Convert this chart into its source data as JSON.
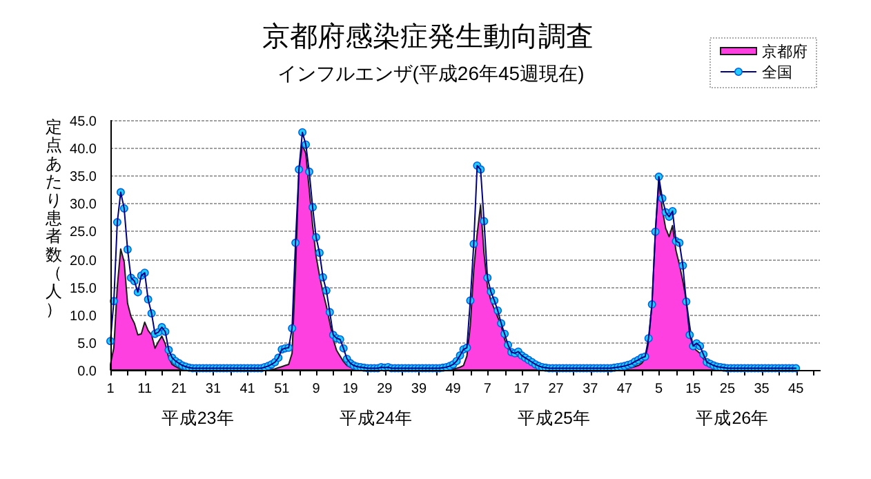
{
  "chart_data": {
    "type": "line",
    "title": "京都府感染症発生動向調査",
    "subtitle": "インフルエンザ(平成26年45週現在)",
    "ylabel": "定点あたり患者数（人）",
    "categories": [
      "1",
      null,
      null,
      null,
      null,
      null,
      null,
      null,
      null,
      null,
      "11",
      null,
      null,
      null,
      null,
      null,
      null,
      null,
      null,
      null,
      "21",
      null,
      null,
      null,
      null,
      null,
      null,
      null,
      null,
      null,
      "31",
      null,
      null,
      null,
      null,
      null,
      null,
      null,
      null,
      null,
      "41",
      null,
      null,
      null,
      null,
      null,
      null,
      null,
      null,
      null,
      "51",
      null,
      null,
      null,
      null,
      null,
      null,
      null,
      null,
      null,
      "9",
      null,
      null,
      null,
      null,
      null,
      null,
      null,
      null,
      null,
      "19",
      null,
      null,
      null,
      null,
      null,
      null,
      null,
      null,
      null,
      "29",
      null,
      null,
      null,
      null,
      null,
      null,
      null,
      null,
      null,
      "39",
      null,
      null,
      null,
      null,
      null,
      null,
      null,
      null,
      null,
      "49",
      null,
      null,
      null,
      null,
      null,
      null,
      null,
      null,
      null,
      "7",
      null,
      null,
      null,
      null,
      null,
      null,
      null,
      null,
      null,
      "17",
      null,
      null,
      null,
      null,
      null,
      null,
      null,
      null,
      null,
      "27",
      null,
      null,
      null,
      null,
      null,
      null,
      null,
      null,
      null,
      "37",
      null,
      null,
      null,
      null,
      null,
      null,
      null,
      null,
      null,
      "47",
      null,
      null,
      null,
      null,
      null,
      null,
      null,
      null,
      null,
      "5",
      null,
      null,
      null,
      null,
      null,
      null,
      null,
      null,
      null,
      "15",
      null,
      null,
      null,
      null,
      null,
      null,
      null,
      null,
      null,
      "25",
      null,
      null,
      null,
      null,
      null,
      null,
      null,
      null,
      null,
      "35",
      null,
      null,
      null,
      null,
      null,
      null,
      null,
      null,
      null,
      "45",
      null,
      null,
      null,
      null,
      null,
      null,
      null
    ],
    "series": [
      {
        "name": "京都府",
        "type": "area",
        "color": "#ff40e0",
        "values": [
          1.0,
          4.0,
          15.0,
          21.8,
          19.5,
          12.0,
          9.6,
          8.4,
          6.3,
          6.5,
          8.6,
          7.1,
          6.3,
          3.9,
          5.1,
          6.1,
          4.7,
          2.2,
          1.0,
          0.6,
          0.3,
          0.1,
          0.1,
          0.1,
          0.1,
          0.1,
          0.1,
          0.1,
          0.1,
          0.1,
          0.1,
          0.1,
          0.1,
          0.1,
          0.1,
          0.1,
          0.1,
          0.1,
          0.1,
          0.1,
          0.1,
          0.1,
          0.1,
          0.1,
          0.1,
          0.1,
          0.1,
          0.1,
          0.2,
          0.4,
          0.6,
          0.8,
          1.0,
          3.0,
          18.0,
          36.0,
          40.5,
          39.0,
          32.5,
          26.0,
          20.5,
          17.0,
          14.0,
          11.5,
          8.5,
          5.5,
          3.5,
          2.5,
          1.5,
          0.8,
          0.5,
          0.3,
          0.1,
          0.1,
          0.1,
          0.1,
          0.1,
          0.1,
          0.1,
          0.1,
          0.1,
          0.1,
          0.1,
          0.1,
          0.1,
          0.1,
          0.1,
          0.1,
          0.1,
          0.1,
          0.1,
          0.1,
          0.1,
          0.1,
          0.1,
          0.1,
          0.1,
          0.1,
          0.1,
          0.1,
          0.2,
          0.3,
          0.5,
          0.8,
          2.5,
          8.0,
          18.0,
          24.5,
          29.7,
          21.0,
          15.0,
          12.5,
          11.0,
          9.5,
          8.0,
          5.5,
          3.8,
          2.8,
          2.5,
          2.5,
          2.2,
          1.8,
          1.3,
          0.9,
          0.6,
          0.4,
          0.2,
          0.1,
          0.1,
          0.1,
          0.1,
          0.1,
          0.1,
          0.1,
          0.1,
          0.1,
          0.1,
          0.1,
          0.1,
          0.1,
          0.1,
          0.1,
          0.1,
          0.1,
          0.1,
          0.1,
          0.1,
          0.1,
          0.1,
          0.1,
          0.2,
          0.3,
          0.4,
          0.6,
          0.8,
          1.2,
          2.0,
          5.0,
          12.0,
          25.0,
          34.0,
          29.0,
          25.5,
          24.0,
          26.0,
          21.5,
          19.0,
          16.0,
          12.5,
          8.0,
          4.0,
          3.5,
          3.0,
          2.0,
          1.2,
          0.8,
          0.5,
          0.3,
          0.1,
          0.1,
          0.1,
          0.1,
          0.1,
          0.1,
          0.1,
          0.1,
          0.1,
          0.1,
          0.1,
          0.1,
          0.1,
          0.1,
          0.1,
          0.1,
          0.1,
          0.1,
          0.1,
          0.1,
          0.1,
          0.1,
          0.1,
          null,
          null,
          null,
          null,
          null,
          null,
          null
        ]
      },
      {
        "name": "全国",
        "color": "#22ccff",
        "marker": "circle",
        "values": [
          5.2,
          12.4,
          26.6,
          32.0,
          29.1,
          21.7,
          16.6,
          16.0,
          14.0,
          17.0,
          17.5,
          12.7,
          10.2,
          6.5,
          6.8,
          7.7,
          6.9,
          3.6,
          2.2,
          1.6,
          1.2,
          0.8,
          0.6,
          0.4,
          0.3,
          0.3,
          0.3,
          0.3,
          0.3,
          0.3,
          0.3,
          0.3,
          0.3,
          0.3,
          0.3,
          0.3,
          0.3,
          0.3,
          0.3,
          0.3,
          0.3,
          0.3,
          0.3,
          0.3,
          0.3,
          0.5,
          0.7,
          1.0,
          1.4,
          2.2,
          3.7,
          3.9,
          4.0,
          7.5,
          22.9,
          36.1,
          42.8,
          40.6,
          35.7,
          29.3,
          23.9,
          21.1,
          16.7,
          14.3,
          10.4,
          6.3,
          5.7,
          5.5,
          3.9,
          2.0,
          1.2,
          0.8,
          0.6,
          0.5,
          0.4,
          0.3,
          0.3,
          0.3,
          0.3,
          0.5,
          0.4,
          0.5,
          0.3,
          0.3,
          0.3,
          0.3,
          0.3,
          0.3,
          0.3,
          0.3,
          0.3,
          0.3,
          0.3,
          0.3,
          0.3,
          0.3,
          0.3,
          0.4,
          0.5,
          0.7,
          1.0,
          1.6,
          2.6,
          3.7,
          4.0,
          12.5,
          22.7,
          36.8,
          36.1,
          26.8,
          16.6,
          14.1,
          12.5,
          10.7,
          8.4,
          6.5,
          4.5,
          3.2,
          3.0,
          3.3,
          2.6,
          2.2,
          1.8,
          1.4,
          1.0,
          0.7,
          0.5,
          0.4,
          0.3,
          0.3,
          0.3,
          0.3,
          0.3,
          0.3,
          0.3,
          0.3,
          0.3,
          0.3,
          0.3,
          0.3,
          0.3,
          0.3,
          0.3,
          0.3,
          0.3,
          0.3,
          0.3,
          0.4,
          0.5,
          0.6,
          0.7,
          0.9,
          1.1,
          1.5,
          1.8,
          2.2,
          2.4,
          5.7,
          11.8,
          24.9,
          34.8,
          30.9,
          28.4,
          27.6,
          28.6,
          23.2,
          22.9,
          18.8,
          12.3,
          6.3,
          4.3,
          4.8,
          4.3,
          2.8,
          1.4,
          1.1,
          0.8,
          0.6,
          0.5,
          0.4,
          0.3,
          0.3,
          0.3,
          0.3,
          0.3,
          0.3,
          0.3,
          0.3,
          0.3,
          0.3,
          0.3,
          0.3,
          0.3,
          0.3,
          0.3,
          0.3,
          0.3,
          0.3,
          0.3,
          0.3,
          0.3,
          null,
          null,
          null,
          null,
          null,
          null,
          null
        ]
      }
    ],
    "ylim": [
      0,
      45
    ],
    "yticks": [
      {
        "value": 0,
        "label": "0.0"
      },
      {
        "value": 5,
        "label": "5.0"
      },
      {
        "value": 10,
        "label": "10.0"
      },
      {
        "value": 15,
        "label": "15.0"
      },
      {
        "value": 20,
        "label": "20.0"
      },
      {
        "value": 25,
        "label": "25.0"
      },
      {
        "value": 30,
        "label": "30.0"
      },
      {
        "value": 35,
        "label": "35.0"
      },
      {
        "value": 40,
        "label": "40.0"
      },
      {
        "value": 45,
        "label": "45.0"
      }
    ],
    "grid": "y",
    "legend": "top right",
    "annotations": [
      "平成23年",
      "平成24年",
      "平成25年",
      "平成26年"
    ]
  }
}
